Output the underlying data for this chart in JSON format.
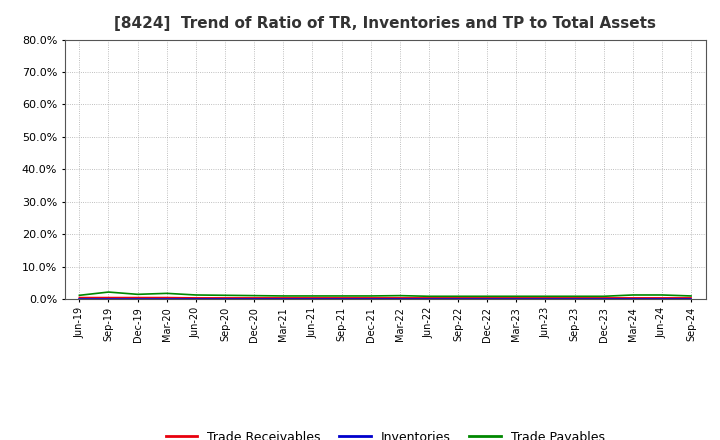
{
  "title": "[8424]  Trend of Ratio of TR, Inventories and TP to Total Assets",
  "x_labels": [
    "Jun-19",
    "Sep-19",
    "Dec-19",
    "Mar-20",
    "Jun-20",
    "Sep-20",
    "Dec-20",
    "Mar-21",
    "Jun-21",
    "Sep-21",
    "Dec-21",
    "Mar-22",
    "Jun-22",
    "Sep-22",
    "Dec-22",
    "Mar-23",
    "Jun-23",
    "Sep-23",
    "Dec-23",
    "Mar-24",
    "Jun-24",
    "Sep-24"
  ],
  "trade_receivables": [
    0.005,
    0.005,
    0.005,
    0.005,
    0.004,
    0.004,
    0.004,
    0.004,
    0.004,
    0.004,
    0.004,
    0.004,
    0.004,
    0.004,
    0.004,
    0.004,
    0.004,
    0.004,
    0.004,
    0.004,
    0.004,
    0.004
  ],
  "inventories": [
    0.0,
    0.0,
    0.0,
    0.0,
    0.0,
    0.0,
    0.0,
    0.0,
    0.0,
    0.0,
    0.0,
    0.0,
    0.0,
    0.0,
    0.0,
    0.0,
    0.0,
    0.0,
    0.0,
    0.0,
    0.0,
    0.0
  ],
  "trade_payables": [
    0.012,
    0.022,
    0.015,
    0.018,
    0.013,
    0.012,
    0.011,
    0.01,
    0.01,
    0.01,
    0.01,
    0.011,
    0.009,
    0.009,
    0.009,
    0.009,
    0.009,
    0.009,
    0.009,
    0.013,
    0.013,
    0.01
  ],
  "tr_color": "#e8000d",
  "inv_color": "#0000cc",
  "tp_color": "#008800",
  "ylim": [
    0.0,
    0.8
  ],
  "yticks": [
    0.0,
    0.1,
    0.2,
    0.3,
    0.4,
    0.5,
    0.6,
    0.7,
    0.8
  ],
  "background_color": "#ffffff",
  "plot_bg_color": "#ffffff",
  "legend_labels": [
    "Trade Receivables",
    "Inventories",
    "Trade Payables"
  ],
  "title_fontsize": 11,
  "tick_fontsize": 7,
  "ytick_fontsize": 8
}
